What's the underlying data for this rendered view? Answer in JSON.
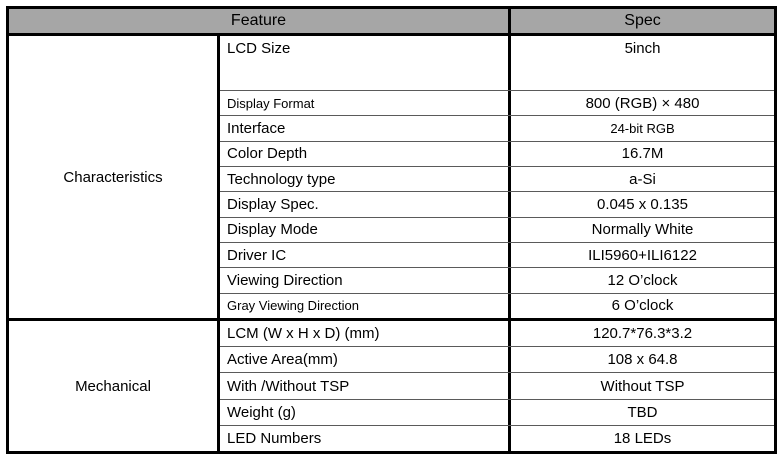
{
  "colors": {
    "header_bg": "#a6a6a6",
    "outer_border": "#000000",
    "row_line": "#5a5a5a"
  },
  "header": {
    "feature_label": "Feature",
    "spec_label": "Spec"
  },
  "groups": [
    {
      "name": "Characteristics",
      "rows": [
        {
          "label": "LCD Size",
          "value": "5inch",
          "tall": true
        },
        {
          "label": "Display Format",
          "value": "800 (RGB) × 480",
          "small_label": true
        },
        {
          "label": "Interface",
          "value": "24-bit RGB",
          "small_value": true
        },
        {
          "label": "Color Depth",
          "value": "16.7M"
        },
        {
          "label": "Technology type",
          "value": "a-Si"
        },
        {
          "label": "Display Spec.",
          "value": "0.045 x 0.135"
        },
        {
          "label": "Display Mode",
          "value": "Normally White"
        },
        {
          "label": "Driver IC",
          "value": "ILI5960+ILI6122"
        },
        {
          "label": "Viewing Direction",
          "value": "12 O’clock"
        },
        {
          "label": "Gray Viewing Direction",
          "value": "6 O’clock",
          "small_label": true
        }
      ]
    },
    {
      "name": "Mechanical",
      "rows": [
        {
          "label": "LCM (W x H x D) (mm)",
          "value": "120.7*76.3*3.2"
        },
        {
          "label": "Active Area(mm)",
          "value": "108 x 64.8"
        },
        {
          "label": "With /Without TSP",
          "value": "Without TSP"
        },
        {
          "label": "Weight (g)",
          "value": "TBD"
        },
        {
          "label": "LED Numbers",
          "value": "18 LEDs"
        }
      ]
    }
  ]
}
